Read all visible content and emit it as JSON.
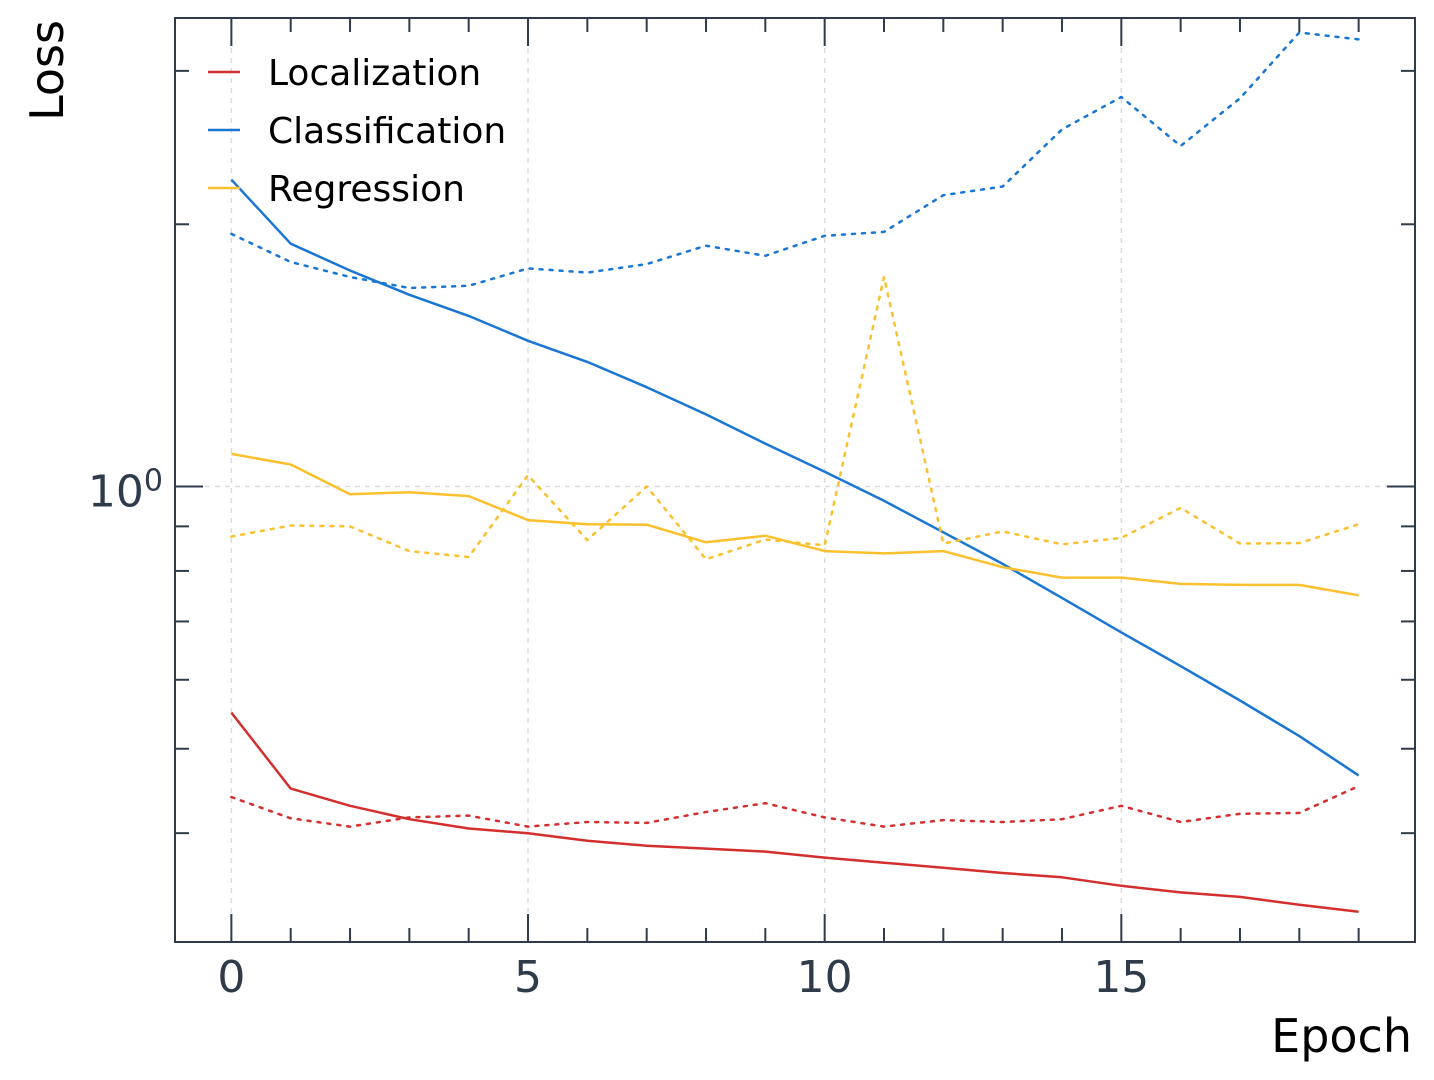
{
  "chart_data": {
    "type": "line",
    "title": "",
    "xlabel": "Epoch",
    "ylabel": "Loss",
    "y_scale": "log",
    "x_ticks": [
      0,
      5,
      10,
      15
    ],
    "x_tick_labels": [
      "0",
      "5",
      "10",
      "15"
    ],
    "y_ticks": [
      1.0
    ],
    "y_tick_labels": [
      "10^0"
    ],
    "xlim": [
      -0.95,
      19.95
    ],
    "ylim": [
      0.3,
      3.45
    ],
    "grid": true,
    "legend_position": "top-left",
    "x": [
      0,
      1,
      2,
      3,
      4,
      5,
      6,
      7,
      8,
      9,
      10,
      11,
      12,
      13,
      14,
      15,
      16,
      17,
      18,
      19
    ],
    "series": [
      {
        "name": "Localization",
        "color": "#d32f2f",
        "style": "solid",
        "values": [
          0.55,
          0.45,
          0.43,
          0.415,
          0.405,
          0.4,
          0.392,
          0.387,
          0.384,
          0.381,
          0.375,
          0.37,
          0.365,
          0.36,
          0.356,
          0.348,
          0.342,
          0.338,
          0.331,
          0.325
        ]
      },
      {
        "name": "Classification",
        "color": "#1976d2",
        "style": "solid",
        "values": [
          2.25,
          1.9,
          1.77,
          1.66,
          1.57,
          1.47,
          1.39,
          1.3,
          1.21,
          1.12,
          1.04,
          0.963,
          0.886,
          0.815,
          0.745,
          0.68,
          0.622,
          0.568,
          0.517,
          0.466
        ]
      },
      {
        "name": "Regression",
        "color": "#fbc02d",
        "style": "solid",
        "values": [
          1.09,
          1.06,
          0.98,
          0.985,
          0.975,
          0.915,
          0.905,
          0.904,
          0.863,
          0.878,
          0.843,
          0.838,
          0.843,
          0.808,
          0.786,
          0.786,
          0.773,
          0.771,
          0.771,
          0.75
        ]
      },
      {
        "color": "#d32f2f",
        "style": "dotted",
        "values": [
          0.44,
          0.416,
          0.407,
          0.417,
          0.419,
          0.407,
          0.412,
          0.411,
          0.423,
          0.433,
          0.417,
          0.407,
          0.414,
          0.412,
          0.415,
          0.43,
          0.412,
          0.421,
          0.422,
          0.453
        ]
      },
      {
        "color": "#1976d2",
        "style": "dotted",
        "values": [
          1.95,
          1.81,
          1.74,
          1.69,
          1.7,
          1.78,
          1.76,
          1.8,
          1.89,
          1.84,
          1.94,
          1.96,
          2.16,
          2.21,
          2.57,
          2.8,
          2.46,
          2.79,
          3.32,
          3.26
        ]
      },
      {
        "color": "#fbc02d",
        "style": "dotted",
        "values": [
          0.876,
          0.902,
          0.9,
          0.843,
          0.83,
          1.03,
          0.868,
          1.0,
          0.825,
          0.869,
          0.856,
          1.74,
          0.86,
          0.888,
          0.858,
          0.873,
          0.945,
          0.86,
          0.861,
          0.905
        ]
      }
    ]
  }
}
